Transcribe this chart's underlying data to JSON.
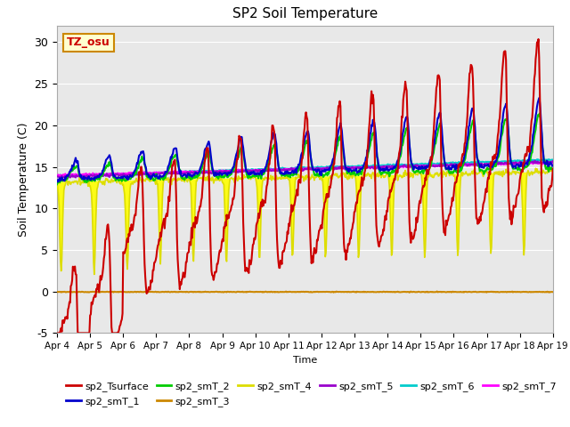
{
  "title": "SP2 Soil Temperature",
  "xlabel": "Time",
  "ylabel": "Soil Temperature (C)",
  "ylim": [
    -5,
    32
  ],
  "xlim_days": 15,
  "tz_label": "TZ_osu",
  "x_ticks_labels": [
    "Apr 4",
    "Apr 5",
    "Apr 6",
    "Apr 7",
    "Apr 8",
    "Apr 9",
    "Apr 10",
    "Apr 11",
    "Apr 12",
    "Apr 13",
    "Apr 14",
    "Apr 15",
    "Apr 16",
    "Apr 17",
    "Apr 18",
    "Apr 19"
  ],
  "yticks": [
    -5,
    0,
    5,
    10,
    15,
    20,
    25,
    30
  ],
  "colors": {
    "sp2_Tsurface": "#cc0000",
    "sp2_smT_1": "#0000cc",
    "sp2_smT_2": "#00cc00",
    "sp2_smT_3": "#cc8800",
    "sp2_smT_4": "#dddd00",
    "sp2_smT_5": "#9900cc",
    "sp2_smT_6": "#00cccc",
    "sp2_smT_7": "#ff00ff"
  },
  "figsize": [
    6.4,
    4.8
  ],
  "dpi": 100
}
